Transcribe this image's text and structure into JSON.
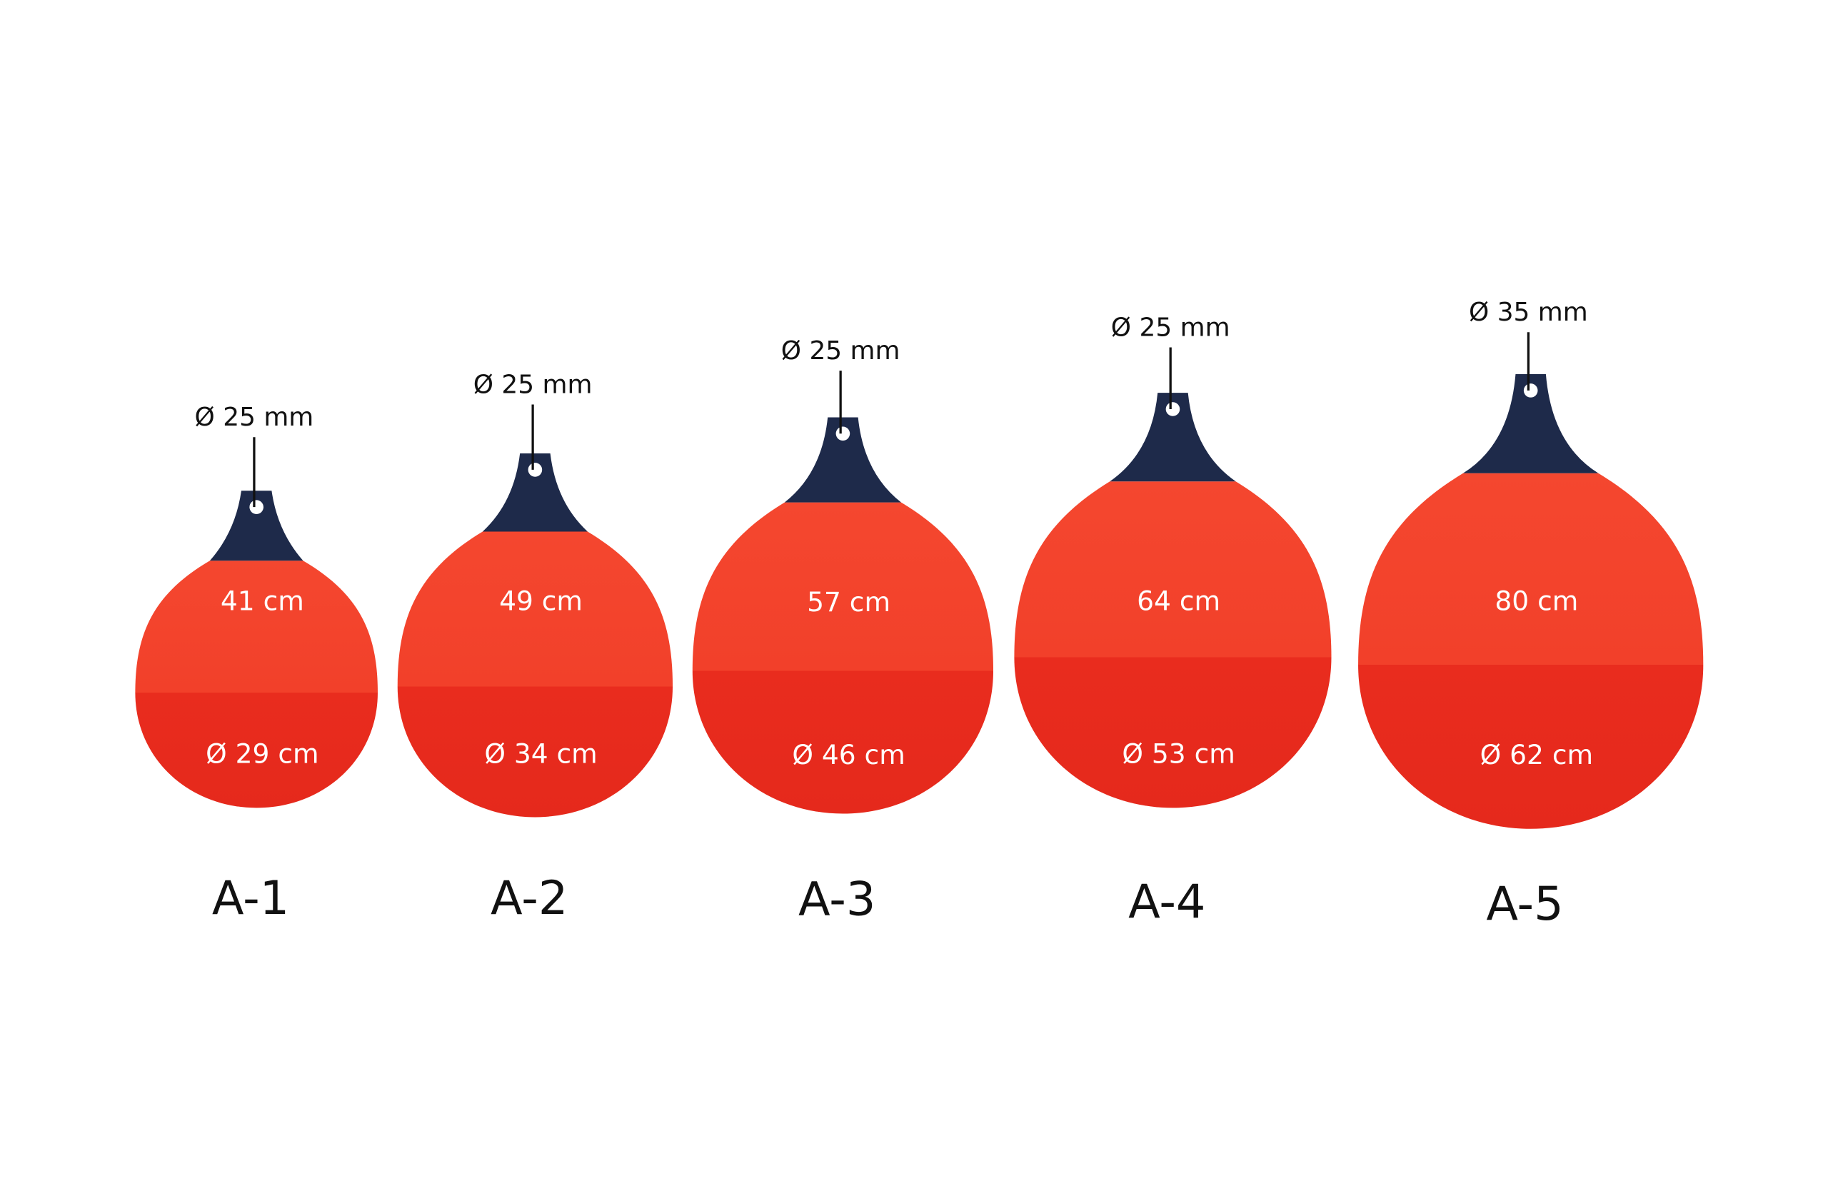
{
  "items": [
    {
      "eye": "Ø 25 mm",
      "height": "41 cm",
      "diameter": "Ø 29 cm",
      "model": "A-1"
    },
    {
      "eye": "Ø 25 mm",
      "height": "49 cm",
      "diameter": "Ø 34 cm",
      "model": "A-2"
    },
    {
      "eye": "Ø 25 mm",
      "height": "57 cm",
      "diameter": "Ø 46 cm",
      "model": "A-3"
    },
    {
      "eye": "Ø 25 mm",
      "height": "64 cm",
      "diameter": "Ø 53 cm",
      "model": "A-4"
    },
    {
      "eye": "Ø 35 mm",
      "height": "80 cm",
      "diameter": "Ø 62 cm",
      "model": "A-5"
    }
  ]
}
